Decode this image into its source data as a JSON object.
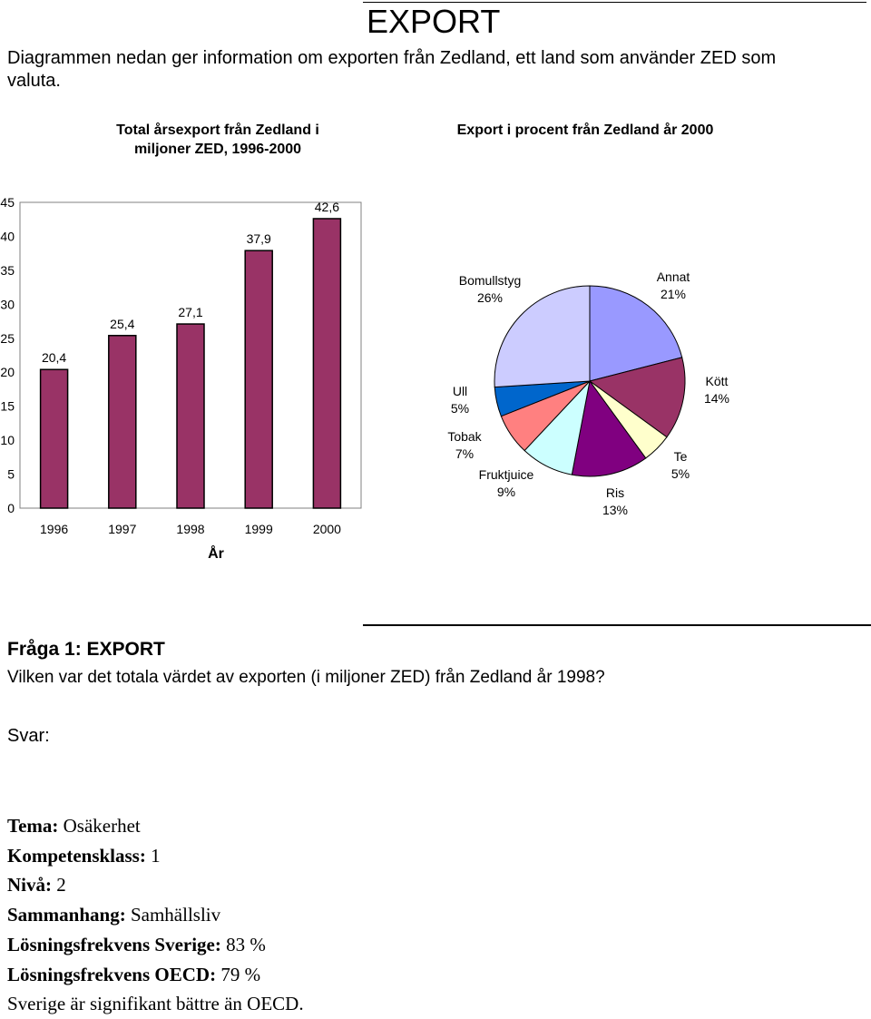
{
  "title": "EXPORT",
  "intro": "Diagrammen nedan ger information om exporten från Zedland, ett land som använder ZED som valuta.",
  "chart_data": [
    {
      "type": "bar",
      "title": "Total årsexport från Zedland i miljoner ZED, 1996-2000",
      "xlabel": "År",
      "ylabel": "",
      "categories": [
        "1996",
        "1997",
        "1998",
        "1999",
        "2000"
      ],
      "values": [
        20.4,
        25.4,
        27.1,
        37.9,
        42.6
      ],
      "value_labels": [
        "20,4",
        "25,4",
        "27,1",
        "37,9",
        "42,6"
      ],
      "ylim": [
        0,
        45
      ],
      "yticks": [
        "0",
        "5",
        "10",
        "15",
        "20",
        "25",
        "30",
        "35",
        "40",
        "45"
      ],
      "color": "#993366",
      "grid": false
    },
    {
      "type": "pie",
      "title": "Export i procent från Zedland år 2000",
      "slices": [
        {
          "name": "Annat",
          "value": 21,
          "label": "21%",
          "color": "#9999FF"
        },
        {
          "name": "Kött",
          "value": 14,
          "label": "14%",
          "color": "#993366"
        },
        {
          "name": "Te",
          "value": 5,
          "label": "5%",
          "color": "#FFFFCC"
        },
        {
          "name": "Ris",
          "value": 13,
          "label": "13%",
          "color": "#800080"
        },
        {
          "name": "Fruktjuice",
          "value": 9,
          "label": "9%",
          "color": "#CCFFFF"
        },
        {
          "name": "Tobak",
          "value": 7,
          "label": "7%",
          "color": "#FF8080"
        },
        {
          "name": "Ull",
          "value": 5,
          "label": "5%",
          "color": "#0066CC"
        },
        {
          "name": "Bomullstyg",
          "value": 26,
          "label": "26%",
          "color": "#CCCCFF"
        }
      ]
    }
  ],
  "question": {
    "heading": "Fråga 1: EXPORT",
    "text": "Vilken var det totala värdet av exporten (i miljoner ZED) från Zedland år 1998?",
    "answer_label": "Svar:"
  },
  "meta": [
    {
      "label": "Tema:",
      "value": "Osäkerhet"
    },
    {
      "label": "Kompetensklass:",
      "value": "1"
    },
    {
      "label": "Nivå:",
      "value": "2"
    },
    {
      "label": "Sammanhang:",
      "value": "Samhällsliv"
    },
    {
      "label": "Lösningsfrekvens Sverige:",
      "value": "83 %"
    },
    {
      "label": "Lösningsfrekvens OECD:",
      "value": "79 %"
    }
  ],
  "footer_note": "Sverige är signifikant bättre än OECD."
}
